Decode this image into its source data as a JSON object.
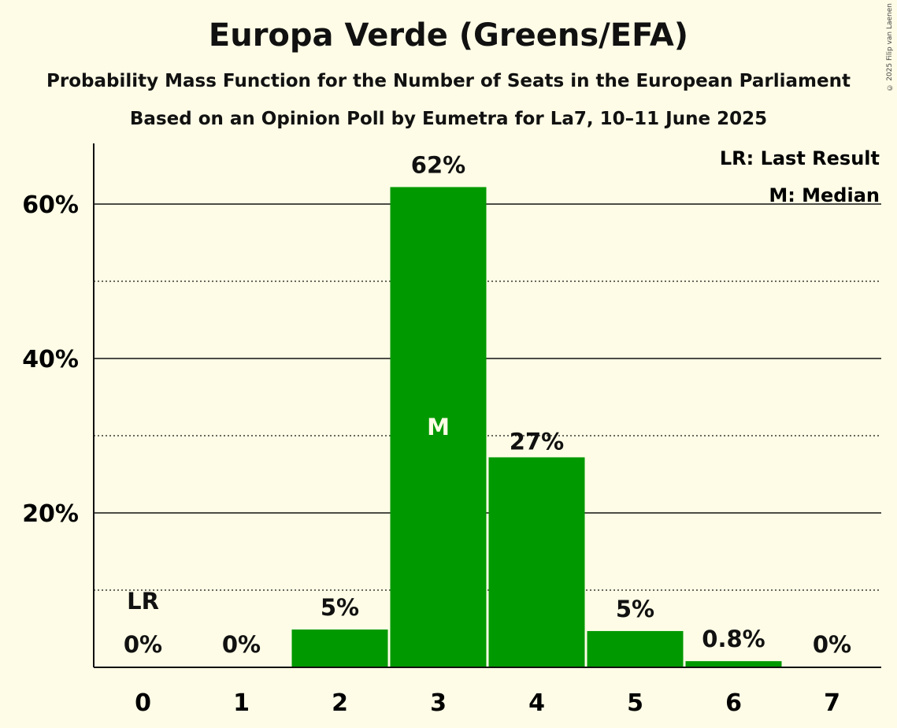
{
  "title": "Europa Verde (Greens/EFA)",
  "subtitle1": "Probability Mass Function for the Number of Seats in the European Parliament",
  "subtitle2": "Based on an Opinion Poll by Eumetra for La7, 10–11 June 2025",
  "copyright": "© 2025 Filip van Laenen",
  "legend": {
    "lr": "LR: Last Result",
    "m": "M: Median"
  },
  "colors": {
    "bar": "#009900",
    "background": "#fefce6",
    "text": "#111111"
  },
  "chart_data": {
    "type": "bar",
    "categories": [
      "0",
      "1",
      "2",
      "3",
      "4",
      "5",
      "6",
      "7"
    ],
    "values": [
      0,
      0,
      4.9,
      62.2,
      27.2,
      4.7,
      0.8,
      0
    ],
    "labels": [
      "0%",
      "0%",
      "5%",
      "62%",
      "27%",
      "5%",
      "0.8%",
      "0%"
    ],
    "ylim": [
      0,
      68
    ],
    "yticks": [
      20,
      40,
      60
    ],
    "ytick_labels": [
      "20%",
      "40%",
      "60%"
    ],
    "minor_gridlines": [
      10,
      30,
      50
    ],
    "last_result_index": 0,
    "median_index": 3,
    "lr_marker": "LR",
    "median_marker": "M",
    "xlabel": "",
    "ylabel": ""
  }
}
